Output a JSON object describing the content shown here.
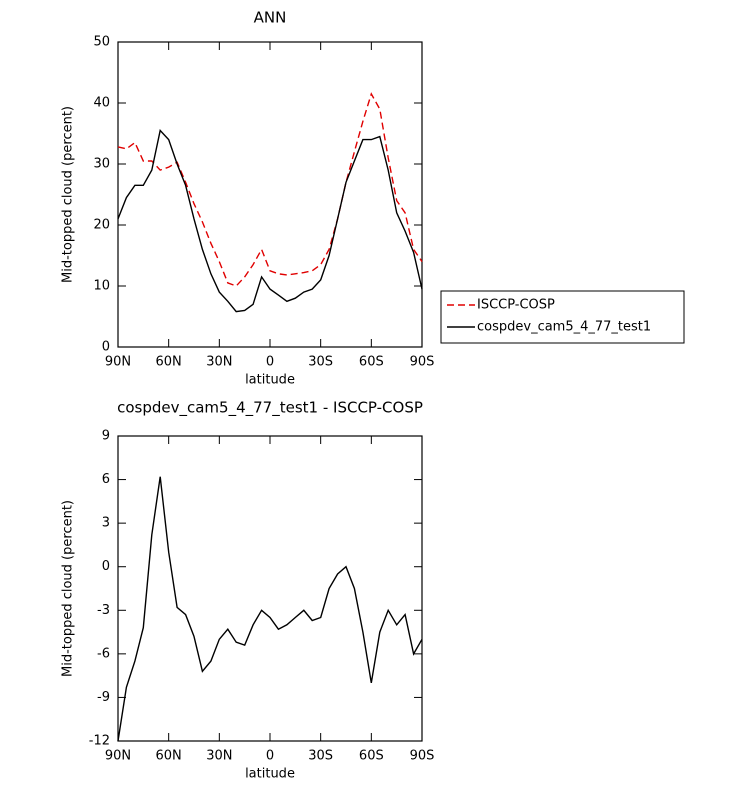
{
  "chart_data": [
    {
      "type": "line",
      "title": "ANN",
      "xlabel": "latitude",
      "ylabel": "Mid-topped cloud (percent)",
      "x": [
        90,
        85,
        80,
        75,
        70,
        65,
        60,
        55,
        50,
        45,
        40,
        35,
        30,
        25,
        20,
        15,
        10,
        5,
        0,
        -5,
        -10,
        -15,
        -20,
        -25,
        -30,
        -35,
        -40,
        -45,
        -50,
        -55,
        -60,
        -65,
        -70,
        -75,
        -80,
        -85,
        -90
      ],
      "xlim": [
        90,
        -90
      ],
      "xticks": [
        {
          "value": 90,
          "label": "90N"
        },
        {
          "value": 60,
          "label": "60N"
        },
        {
          "value": 30,
          "label": "30N"
        },
        0,
        {
          "value": -30,
          "label": "30S"
        },
        {
          "value": -60,
          "label": "60S"
        },
        {
          "value": -90,
          "label": "90S"
        }
      ],
      "ylim": [
        0,
        50
      ],
      "yticks": [
        0,
        10,
        20,
        30,
        40,
        50
      ],
      "series": [
        {
          "name": "ISCCP-COSP",
          "color": "#e00000",
          "dashed": true,
          "values": [
            32.8,
            32.5,
            33.5,
            30.5,
            30.5,
            29,
            29.5,
            30.3,
            27,
            23.5,
            20.5,
            17,
            14,
            10.5,
            10,
            11.5,
            13.5,
            16,
            12.5,
            12,
            11.8,
            12,
            12.2,
            12.5,
            13.5,
            16,
            21,
            27,
            32,
            37,
            41.5,
            39,
            31,
            24,
            22,
            16,
            14
          ]
        },
        {
          "name": "cospdev_cam5_4_77_test1",
          "color": "#000000",
          "dashed": false,
          "values": [
            21,
            24.5,
            26.5,
            26.5,
            29,
            35.5,
            34,
            30,
            26.5,
            21,
            16,
            12,
            9,
            7.5,
            5.8,
            6,
            7,
            11.5,
            9.5,
            8.5,
            7.5,
            8,
            9,
            9.5,
            11,
            15,
            21,
            27,
            30.5,
            34,
            34,
            34.5,
            29,
            22,
            19,
            15.5,
            9.5
          ]
        }
      ]
    },
    {
      "type": "line",
      "title": "cospdev_cam5_4_77_test1 - ISCCP-COSP",
      "xlabel": "latitude",
      "ylabel": "Mid-topped cloud (percent)",
      "x": [
        90,
        85,
        80,
        75,
        70,
        65,
        60,
        55,
        50,
        45,
        40,
        35,
        30,
        25,
        20,
        15,
        10,
        5,
        0,
        -5,
        -10,
        -15,
        -20,
        -25,
        -30,
        -35,
        -40,
        -45,
        -50,
        -55,
        -60,
        -65,
        -70,
        -75,
        -80,
        -85,
        -90
      ],
      "xlim": [
        90,
        -90
      ],
      "xticks": [
        {
          "value": 90,
          "label": "90N"
        },
        {
          "value": 60,
          "label": "60N"
        },
        {
          "value": 30,
          "label": "30N"
        },
        0,
        {
          "value": -30,
          "label": "30S"
        },
        {
          "value": -60,
          "label": "60S"
        },
        {
          "value": -90,
          "label": "90S"
        }
      ],
      "ylim": [
        -12,
        9
      ],
      "yticks": [
        -12,
        -9,
        -6,
        -3,
        0,
        3,
        6,
        9
      ],
      "series": [
        {
          "color": "#000000",
          "dashed": false,
          "values": [
            -12,
            -8.3,
            -6.5,
            -4.2,
            2.2,
            6.2,
            1,
            -2.8,
            -3.3,
            -4.8,
            -7.2,
            -6.5,
            -5,
            -4.3,
            -5.2,
            -5.4,
            -4,
            -3,
            -3.5,
            -4.3,
            -4,
            -3.5,
            -3,
            -3.7,
            -3.5,
            -1.5,
            -0.5,
            0,
            -1.5,
            -4.5,
            -8,
            -4.5,
            -3,
            -4,
            -3.3,
            -6,
            -5
          ]
        }
      ]
    }
  ]
}
